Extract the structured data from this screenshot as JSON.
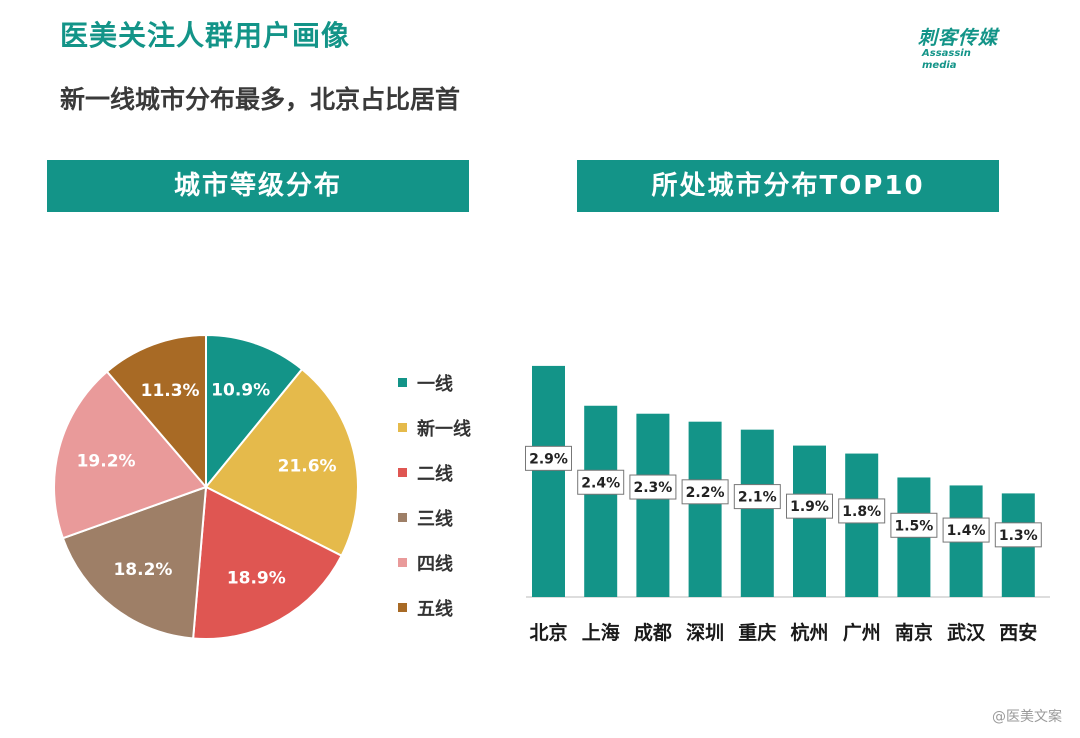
{
  "page": {
    "title": "医美关注人群用户画像",
    "subtitle": "新一线城市分布最多，北京占比居首",
    "logo_cn": "刺客传媒",
    "logo_en": "Assassin media",
    "watermark": "@医美文案"
  },
  "chart_data": [
    {
      "type": "pie",
      "title": "城市等级分布",
      "labels": [
        "一线",
        "新一线",
        "二线",
        "三线",
        "四线",
        "五线"
      ],
      "values": [
        10.9,
        21.6,
        18.9,
        18.2,
        19.2,
        11.3
      ],
      "value_labels": [
        "10.9%",
        "21.6%",
        "18.9%",
        "18.2%",
        "19.2%",
        "11.3%"
      ],
      "colors": [
        "#139488",
        "#E5BA4B",
        "#DF5652",
        "#9E7F67",
        "#E99A9A",
        "#A86A25"
      ],
      "legend_position": "right"
    },
    {
      "type": "bar",
      "title": "所处城市分布TOP10",
      "categories": [
        "北京",
        "上海",
        "成都",
        "深圳",
        "重庆",
        "杭州",
        "广州",
        "南京",
        "武汉",
        "西安"
      ],
      "values": [
        2.9,
        2.4,
        2.3,
        2.2,
        2.1,
        1.9,
        1.8,
        1.5,
        1.4,
        1.3
      ],
      "value_labels": [
        "2.9%",
        "2.4%",
        "2.3%",
        "2.2%",
        "2.1%",
        "1.9%",
        "1.8%",
        "1.5%",
        "1.4%",
        "1.3%"
      ],
      "unit": "%",
      "color": "#139488",
      "ylim": [
        0,
        3.2
      ]
    }
  ]
}
